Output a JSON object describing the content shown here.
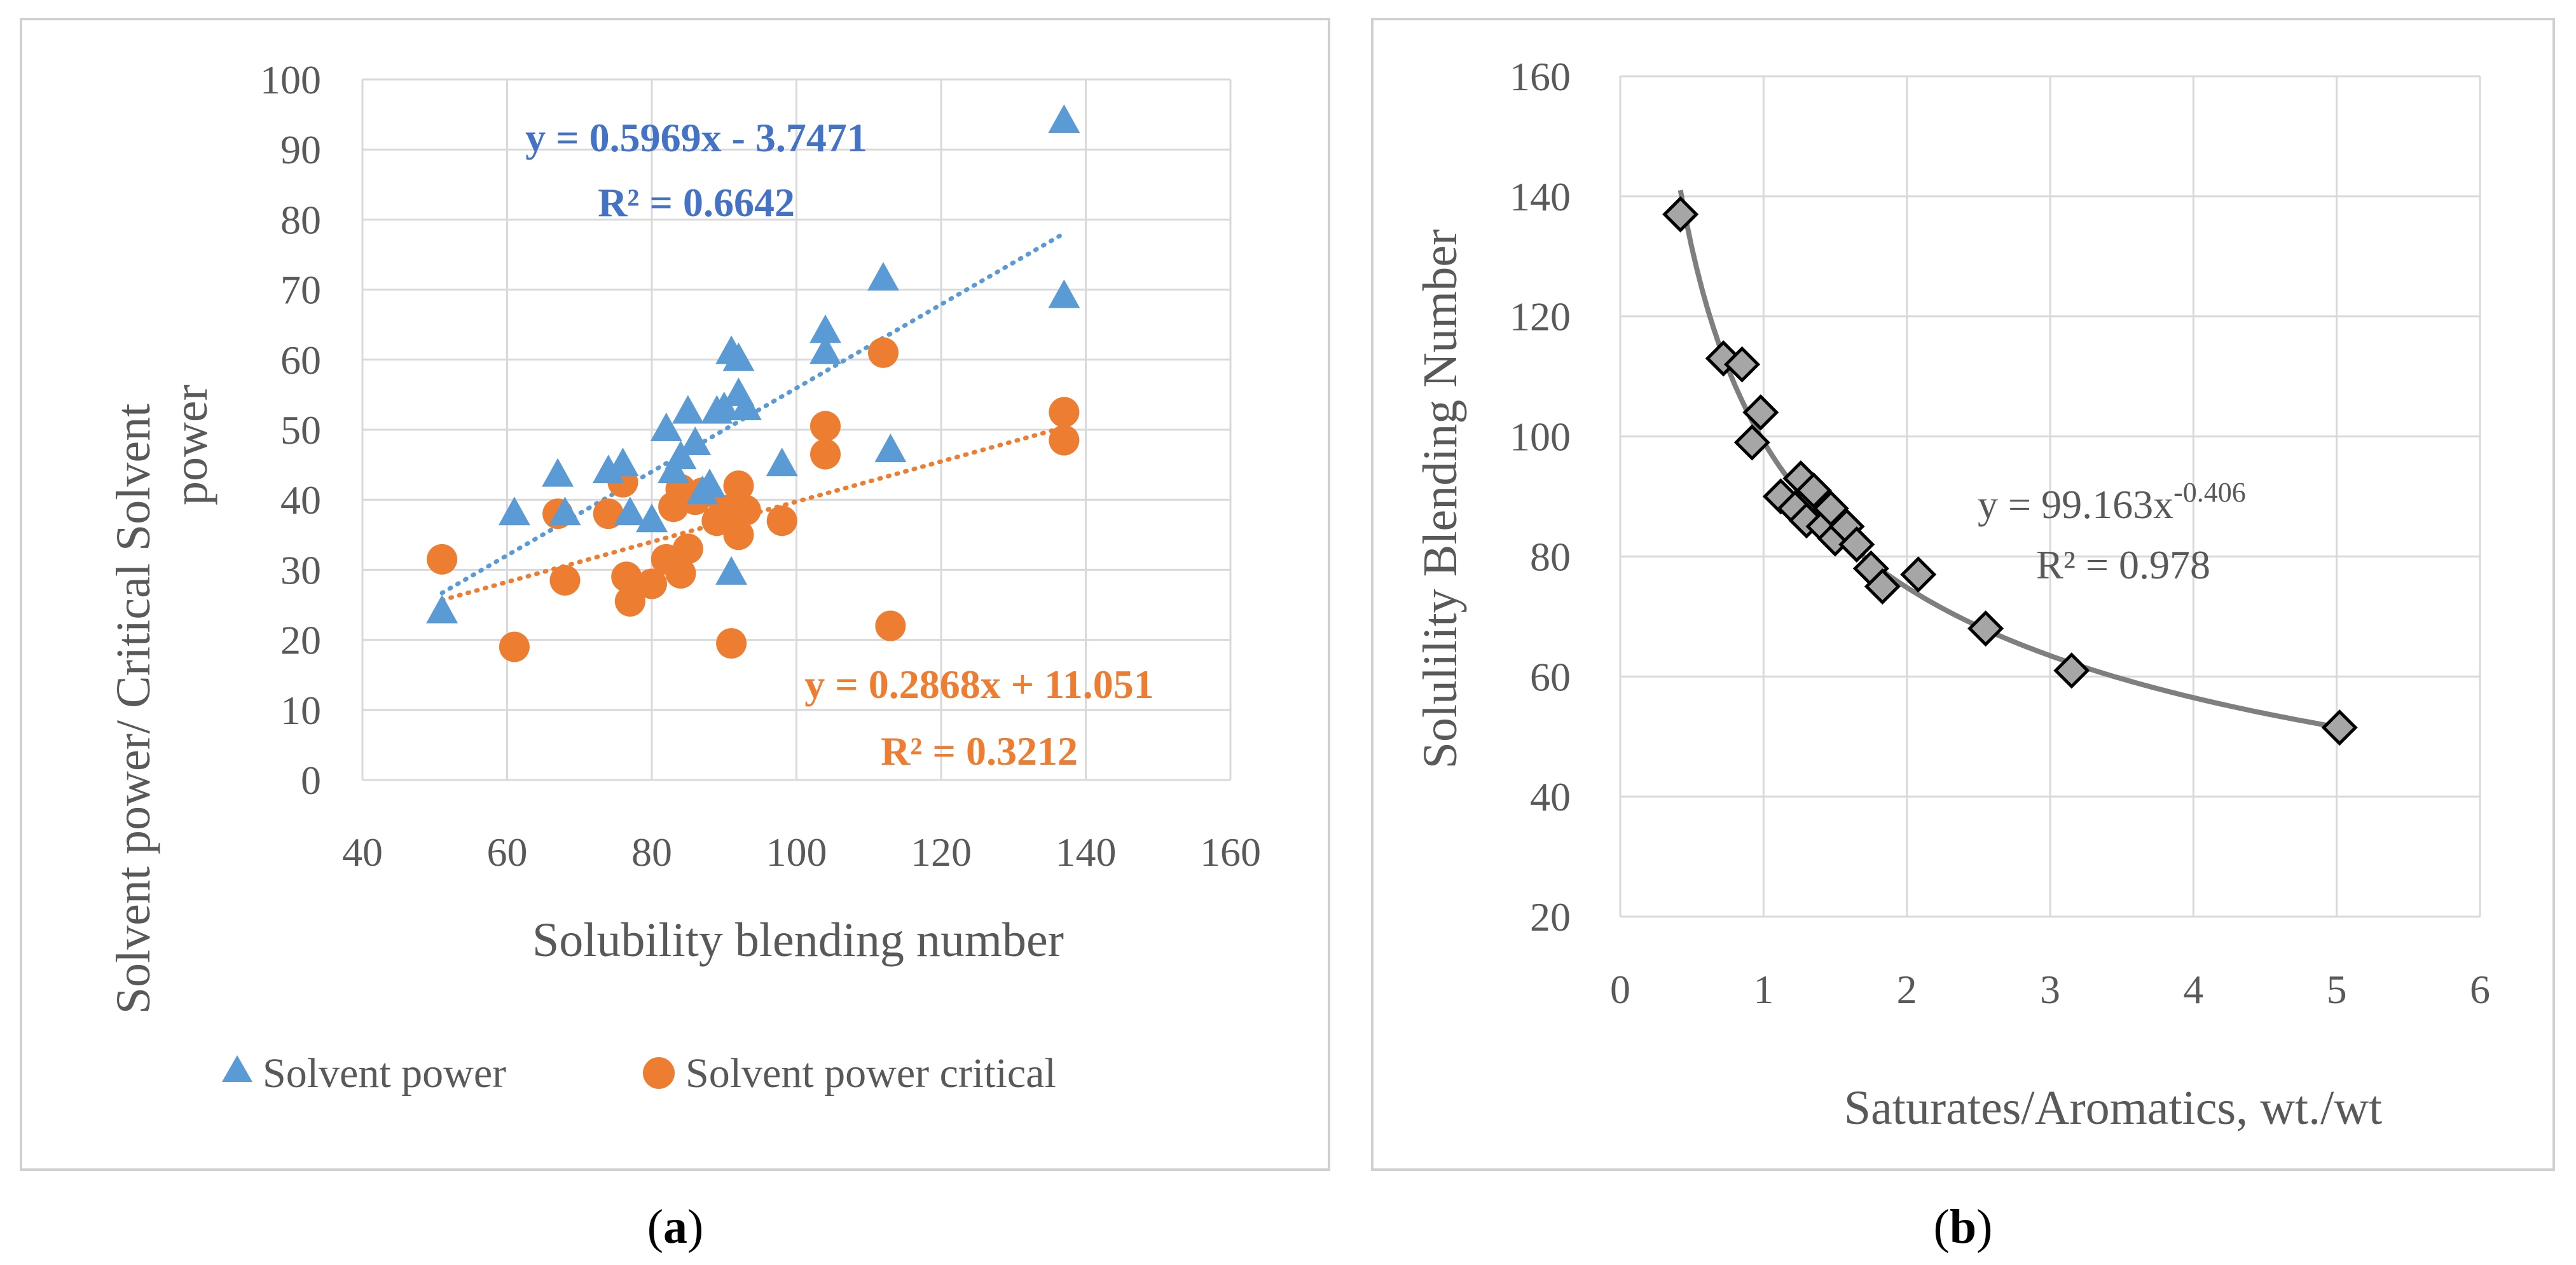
{
  "colors": {
    "blue": "#5B9BD5",
    "orange": "#ED7D31",
    "eq_blue": "#4472C4",
    "gray_line": "#7F7F7F",
    "diamond_fill": "#A6A6A6",
    "grid": "#D9D9D9",
    "frame": "#D0D0D0",
    "text": "#595959"
  },
  "chart_data": [
    {
      "panel": "(a)",
      "type": "scatter",
      "xlabel": "Solubility blending number",
      "ylabel_line1": "Solvent power/ Critical Solvent",
      "ylabel_line2": "power",
      "xlim": [
        40,
        160
      ],
      "ylim": [
        0,
        100
      ],
      "x_ticks": [
        "40",
        "60",
        "80",
        "100",
        "120",
        "140",
        "160"
      ],
      "y_ticks": [
        "0",
        "10",
        "20",
        "30",
        "40",
        "50",
        "60",
        "70",
        "80",
        "90",
        "100"
      ],
      "legend_position": "bottom",
      "series": [
        {
          "name": "Solvent power",
          "marker": "triangle",
          "color": "#5B9BD5",
          "points": [
            [
              51,
              24
            ],
            [
              61,
              38
            ],
            [
              67,
              43.5
            ],
            [
              68,
              38
            ],
            [
              74,
              44
            ],
            [
              76,
              45
            ],
            [
              77,
              38
            ],
            [
              80,
              37
            ],
            [
              82,
              50
            ],
            [
              83,
              44
            ],
            [
              84,
              46
            ],
            [
              85,
              52.5
            ],
            [
              86,
              48
            ],
            [
              87,
              41
            ],
            [
              88,
              42
            ],
            [
              89,
              52.5
            ],
            [
              90,
              53
            ],
            [
              91,
              61
            ],
            [
              91,
              29.5
            ],
            [
              92,
              60
            ],
            [
              92,
              55
            ],
            [
              93,
              53
            ],
            [
              98,
              45
            ],
            [
              104,
              64
            ],
            [
              104,
              61
            ],
            [
              112,
              71.5
            ],
            [
              113,
              47
            ],
            [
              137,
              94
            ],
            [
              137,
              69
            ]
          ],
          "trendline": {
            "equation": "y = 0.5969x - 3.7471",
            "r2": "R² = 0.6642",
            "slope": 0.5969,
            "intercept": -3.7471,
            "x_range": [
              51,
              137
            ]
          }
        },
        {
          "name": "Solvent power critical",
          "marker": "circle",
          "color": "#ED7D31",
          "points": [
            [
              51,
              31.5
            ],
            [
              61,
              19
            ],
            [
              67,
              38
            ],
            [
              68,
              28.5
            ],
            [
              74,
              38
            ],
            [
              76,
              42.5
            ],
            [
              76.5,
              29
            ],
            [
              77,
              25.5
            ],
            [
              80,
              28
            ],
            [
              82,
              31.5
            ],
            [
              83,
              39
            ],
            [
              84,
              41.5
            ],
            [
              84,
              29.5
            ],
            [
              85,
              33
            ],
            [
              86,
              40
            ],
            [
              87,
              41
            ],
            [
              89,
              37
            ],
            [
              90,
              38.5
            ],
            [
              91,
              19.5
            ],
            [
              92,
              35
            ],
            [
              92,
              42
            ],
            [
              93,
              38.5
            ],
            [
              98,
              37
            ],
            [
              104,
              50.5
            ],
            [
              104,
              46.5
            ],
            [
              112,
              61
            ],
            [
              113,
              22
            ],
            [
              137,
              52.5
            ],
            [
              137,
              48.5
            ]
          ],
          "trendline": {
            "equation": "y = 0.2868x + 11.051",
            "r2": "R² = 0.3212",
            "slope": 0.2868,
            "intercept": 11.051,
            "x_range": [
              51,
              137
            ]
          }
        }
      ]
    },
    {
      "panel": "(b)",
      "type": "scatter",
      "xlabel": "Saturates/Aromatics, wt./wt",
      "ylabel": "Solulility Blending Number",
      "xlim": [
        0,
        6
      ],
      "ylim": [
        20,
        160
      ],
      "x_ticks": [
        "0",
        "1",
        "2",
        "3",
        "4",
        "5",
        "6"
      ],
      "y_ticks": [
        "20",
        "40",
        "60",
        "80",
        "100",
        "120",
        "140",
        "160"
      ],
      "series": [
        {
          "name": "Solubility blending number",
          "marker": "diamond",
          "color": "#A6A6A6",
          "points": [
            [
              0.42,
              137
            ],
            [
              0.72,
              113
            ],
            [
              0.85,
              112
            ],
            [
              0.92,
              99
            ],
            [
              0.98,
              104
            ],
            [
              1.12,
              90
            ],
            [
              1.22,
              88
            ],
            [
              1.26,
              93
            ],
            [
              1.3,
              86
            ],
            [
              1.35,
              91
            ],
            [
              1.42,
              85
            ],
            [
              1.47,
              88
            ],
            [
              1.5,
              83
            ],
            [
              1.58,
              85
            ],
            [
              1.65,
              82
            ],
            [
              1.75,
              78
            ],
            [
              1.83,
              75
            ],
            [
              2.08,
              77
            ],
            [
              2.55,
              68
            ],
            [
              3.15,
              61
            ],
            [
              5.02,
              51.5
            ]
          ],
          "trendline": {
            "equation_prefix": "y = 99.163x",
            "equation_exponent": "-0.406",
            "r2": "R² = 0.978",
            "coef": 99.163,
            "power": -0.406,
            "x_range": [
              0.42,
              5.02
            ]
          }
        }
      ]
    }
  ],
  "captions": {
    "a": "(a)",
    "b": "(b)"
  }
}
